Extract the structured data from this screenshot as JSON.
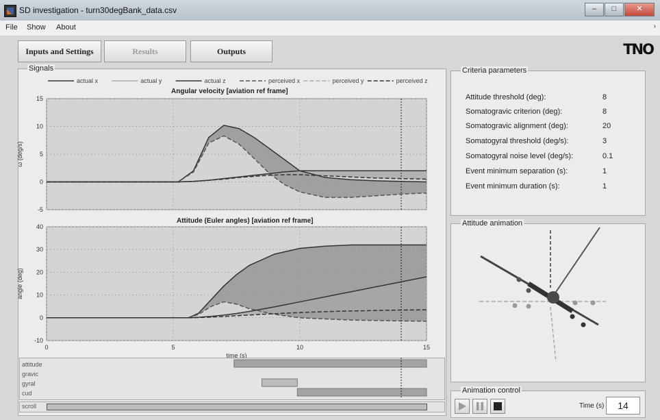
{
  "window": {
    "title": "SD investigation - turn30degBank_data.csv",
    "buttons": [
      "minimize",
      "maximize",
      "close"
    ]
  },
  "menu": {
    "items": [
      "File",
      "Show",
      "About"
    ]
  },
  "tabs": [
    {
      "label": "Inputs and Settings",
      "enabled": true
    },
    {
      "label": "Results",
      "enabled": false
    },
    {
      "label": "Outputs",
      "enabled": true
    }
  ],
  "logo": "TNO",
  "signals": {
    "panel_label": "Signals",
    "legend": [
      "actual x",
      "actual y",
      "actual z",
      "perceived x",
      "perceived y",
      "perceived z"
    ],
    "chart1_title": "Angular velocity [aviation ref frame]",
    "chart1_ylabel": "ω (deg/s)",
    "chart2_title": "Attitude (Euler angles) [aviation ref frame]",
    "chart2_ylabel": "angle (deg)",
    "xlabel": "time (s)"
  },
  "chart_data": [
    {
      "type": "line",
      "title": "Angular velocity [aviation ref frame]",
      "ylabel": "ω (deg/s)",
      "xlabel": "",
      "xlim": [
        0,
        15
      ],
      "ylim": [
        -5,
        15
      ],
      "yticks": [
        -5,
        0,
        5,
        10,
        15
      ],
      "x": [
        0,
        5.2,
        5.8,
        6.4,
        7,
        7.6,
        8.2,
        8.8,
        9.4,
        10,
        11,
        12,
        13,
        14,
        15
      ],
      "series": [
        {
          "name": "actual x",
          "values": [
            0,
            0,
            2,
            8,
            10.2,
            9.6,
            8,
            6,
            4,
            2,
            0.8,
            0.4,
            0.2,
            0.1,
            0
          ]
        },
        {
          "name": "perceived x",
          "values": [
            0,
            0,
            1.8,
            7,
            8.3,
            6.8,
            4.2,
            1.5,
            -0.5,
            -1.8,
            -2.8,
            -2.8,
            -2.5,
            -2.2,
            -2
          ]
        },
        {
          "name": "actual z",
          "values": [
            0,
            0,
            0.1,
            0.3,
            0.6,
            0.9,
            1.2,
            1.5,
            1.8,
            2,
            2,
            2,
            2,
            2,
            2
          ]
        },
        {
          "name": "perceived z",
          "values": [
            0,
            0,
            0.1,
            0.3,
            0.5,
            0.8,
            1,
            1.2,
            1.3,
            1.3,
            1.1,
            0.9,
            0.7,
            0.6,
            0.5
          ]
        }
      ]
    },
    {
      "type": "line",
      "title": "Attitude (Euler angles) [aviation ref frame]",
      "ylabel": "angle (deg)",
      "xlabel": "time (s)",
      "xlim": [
        0,
        15
      ],
      "ylim": [
        -10,
        40
      ],
      "yticks": [
        -10,
        0,
        10,
        20,
        30,
        40
      ],
      "xticks": [
        0,
        5,
        10,
        15
      ],
      "x": [
        0,
        5.6,
        6,
        6.5,
        7,
        7.5,
        8,
        9,
        10,
        11,
        12,
        13,
        14,
        15
      ],
      "series": [
        {
          "name": "actual x",
          "values": [
            0,
            0,
            2,
            8,
            14,
            19,
            23,
            28,
            30.5,
            31.5,
            32,
            32,
            32,
            32
          ]
        },
        {
          "name": "perceived x",
          "values": [
            0,
            0,
            1.5,
            5,
            7,
            6,
            4,
            1.5,
            0,
            -0.5,
            -1,
            -1.2,
            -1.4,
            -1.5
          ]
        },
        {
          "name": "actual z",
          "values": [
            0,
            0,
            0.2,
            0.6,
            1.2,
            1.9,
            2.8,
            4.8,
            7,
            9.2,
            11.4,
            13.6,
            15.8,
            18
          ]
        },
        {
          "name": "perceived z",
          "values": [
            0,
            0,
            0.1,
            0.3,
            0.6,
            0.9,
            1.2,
            1.8,
            2.3,
            2.7,
            3,
            3.2,
            3.4,
            3.5
          ]
        }
      ],
      "cursor_x": 14
    }
  ],
  "events": {
    "rows": [
      {
        "label": "attitude",
        "start": 7.4,
        "end": 15
      },
      {
        "label": "gravic",
        "start": null,
        "end": null
      },
      {
        "label": "gyral",
        "start": 8.5,
        "end": 9.9
      },
      {
        "label": "cud",
        "start": 9.9,
        "end": 15
      }
    ],
    "scroll_label": "scroll"
  },
  "criteria": {
    "panel_label": "Criteria parameters",
    "rows": [
      {
        "label": "Attitude threshold (deg):",
        "value": "8"
      },
      {
        "label": "Somatogravic criterion (deg):",
        "value": "8"
      },
      {
        "label": "Somatogravic alignment (deg):",
        "value": "20"
      },
      {
        "label": "Somatogyral threshold (deg/s):",
        "value": "3"
      },
      {
        "label": "Somatogyral noise level (deg/s):",
        "value": "0.1"
      },
      {
        "label": "Event minimum separation (s):",
        "value": "1"
      },
      {
        "label": "Event minimum duration (s):",
        "value": "1"
      }
    ]
  },
  "animation": {
    "panel_label": "Attitude animation"
  },
  "animation_control": {
    "panel_label": "Animation control",
    "buttons": [
      "play",
      "pause",
      "stop"
    ],
    "time_label": "Time (s)",
    "time_value": "14"
  },
  "colors": {
    "plot_bg": "#d4d4d4",
    "fill": "#8a8a8a",
    "line_dark": "#333333",
    "line_light": "#9a9a9a"
  }
}
